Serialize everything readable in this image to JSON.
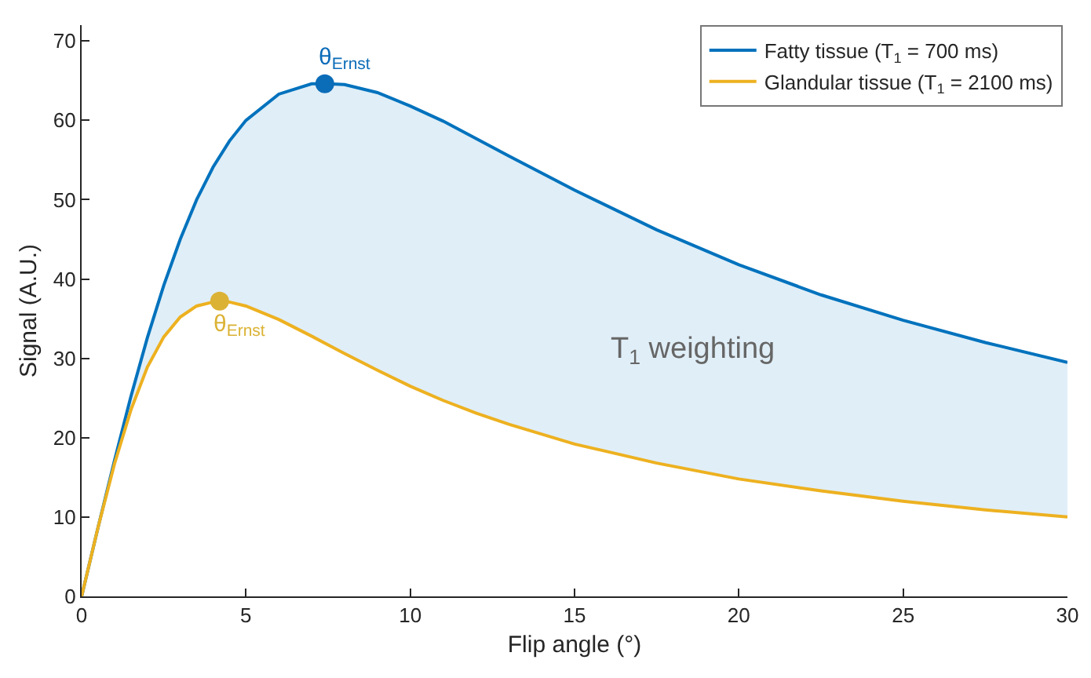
{
  "chart_data": {
    "type": "line",
    "xlabel": "Flip angle (°)",
    "ylabel": "Signal (A.U.)",
    "x": [
      0,
      0.5,
      1,
      1.5,
      2,
      2.5,
      3,
      3.5,
      4,
      4.5,
      5,
      6,
      7,
      7.5,
      8,
      9,
      10,
      11,
      12,
      13,
      15,
      17.5,
      20,
      22.5,
      25,
      27.5,
      30
    ],
    "xlim": [
      0,
      30
    ],
    "xticks": [
      0,
      5,
      10,
      15,
      20,
      25,
      30
    ],
    "ylim": [
      0,
      72
    ],
    "yticks": [
      0,
      10,
      20,
      30,
      40,
      50,
      60,
      70
    ],
    "grid": false,
    "legend": "top right",
    "line_style": "solid",
    "marker": "none",
    "series": [
      {
        "name": "Fatty tissue (T$_{1}$ = 700 ms)",
        "color": "#0072bd",
        "values": [
          0,
          8.7,
          17.1,
          25.2,
          32.6,
          39.2,
          45.0,
          50.0,
          54.1,
          57.4,
          60.0,
          63.3,
          64.6,
          64.6,
          64.5,
          63.5,
          61.8,
          59.9,
          57.7,
          55.5,
          51.2,
          46.2,
          41.8,
          38.0,
          34.8,
          32.0,
          29.5
        ],
        "lower": [
          0,
          8.7,
          16.7,
          23.5,
          28.9,
          32.7,
          35.2,
          36.6,
          37.1,
          37.1,
          36.6,
          34.9,
          32.8,
          31.7,
          30.6,
          28.5,
          26.5,
          24.7,
          23.1,
          21.7,
          19.2,
          16.8,
          14.8,
          13.3,
          12.0,
          10.9,
          10.0
        ],
        "upper": [
          0,
          8.7,
          17.1,
          25.2,
          32.6,
          39.2,
          45.0,
          50.0,
          54.1,
          57.4,
          60.0,
          63.3,
          64.6,
          64.6,
          64.5,
          63.5,
          61.8,
          59.9,
          57.7,
          55.5,
          51.2,
          46.2,
          41.8,
          38.0,
          34.8,
          32.0,
          29.5
        ]
      },
      {
        "name": "Glandular tissue (T$_{1}$ = 2100 ms)",
        "color": "#edb120",
        "values": [
          0,
          8.7,
          16.7,
          23.5,
          28.9,
          32.7,
          35.2,
          36.6,
          37.1,
          37.1,
          36.6,
          34.9,
          32.8,
          31.7,
          30.6,
          28.5,
          26.5,
          24.7,
          23.1,
          21.7,
          19.2,
          16.8,
          14.8,
          13.3,
          12.0,
          10.9,
          10.0
        ]
      },
      {
        "type": "scatter",
        "marker": "circle",
        "color": "#0b6cb8",
        "x": [
          7.4
        ],
        "values": [
          64.6
        ]
      },
      {
        "type": "scatter",
        "marker": "circle",
        "color": "#dbb234",
        "x": [
          4.2
        ],
        "values": [
          37.2
        ]
      }
    ],
    "annotations": [
      {
        "text": "θ$_{Ernst}$",
        "x": 7.4,
        "y": 64.6
      },
      {
        "text": "θ$_{Ernst}$",
        "x": 4.2,
        "y": 37.2
      },
      "T$_{1}$ weighting"
    ]
  }
}
